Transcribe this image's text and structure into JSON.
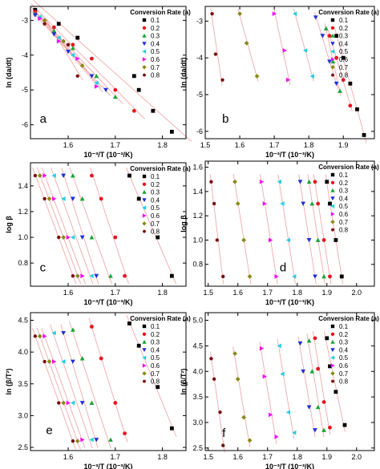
{
  "figure": {
    "legend_title": "Conversion Rate (a)",
    "legend_labels": [
      "0.1",
      "0.2",
      "0.3",
      "0.4",
      "0.5",
      "0.6",
      "0.7",
      "0.8"
    ],
    "series_colors": [
      "#000000",
      "#e8141e",
      "#17a536",
      "#1f2fd8",
      "#22cfe0",
      "#f012f0",
      "#8a8a18",
      "#7a1010"
    ],
    "series_markers": [
      "square",
      "circle",
      "triangle-up",
      "triangle-down",
      "triangle-left",
      "triangle-right",
      "diamond",
      "hexagon"
    ],
    "fit_line_color": "#f0a0a0"
  },
  "chart_data": [
    {
      "panel": "a",
      "type": "scatter",
      "xlabel": "10⁻³/T (10⁻³/K)",
      "ylabel": "ln (da/dt)",
      "xlim": [
        1.52,
        1.85
      ],
      "ylim": [
        -6.4,
        -2.6
      ],
      "xticks": [
        1.6,
        1.7,
        1.8
      ],
      "yticks": [
        -3,
        -4,
        -5,
        -6
      ],
      "series": [
        {
          "name": "0.1",
          "x": [
            1.53,
            1.58,
            1.62,
            1.74,
            1.75,
            1.78,
            1.82
          ],
          "y": [
            -2.7,
            -3.1,
            -3.5,
            -4.6,
            -5.0,
            -5.6,
            -6.2
          ]
        },
        {
          "name": "0.2",
          "x": [
            1.53,
            1.57,
            1.61,
            1.65,
            1.7,
            1.74
          ],
          "y": [
            -2.75,
            -3.2,
            -3.7,
            -4.1,
            -5.0,
            -5.6
          ]
        },
        {
          "name": "0.3",
          "x": [
            1.53,
            1.57,
            1.61,
            1.66,
            1.7
          ],
          "y": [
            -2.8,
            -3.3,
            -3.8,
            -4.6,
            -5.2
          ]
        },
        {
          "name": "0.4",
          "x": [
            1.53,
            1.57,
            1.6,
            1.65,
            1.68
          ],
          "y": [
            -2.85,
            -3.4,
            -3.9,
            -4.6,
            -5.0
          ]
        },
        {
          "name": "0.5",
          "x": [
            1.54,
            1.58,
            1.61,
            1.66
          ],
          "y": [
            -2.9,
            -3.5,
            -4.0,
            -4.8
          ]
        },
        {
          "name": "0.6",
          "x": [
            1.54,
            1.58,
            1.62,
            1.66
          ],
          "y": [
            -2.95,
            -3.6,
            -4.1,
            -4.9
          ]
        },
        {
          "name": "0.7",
          "x": [
            1.55,
            1.59,
            1.63
          ],
          "y": [
            -3.0,
            -3.6,
            -4.3
          ]
        },
        {
          "name": "0.8",
          "x": [
            1.55,
            1.6,
            1.62
          ],
          "y": [
            -3.1,
            -3.7,
            -4.6
          ]
        }
      ],
      "panel_label": "a"
    },
    {
      "panel": "b",
      "type": "scatter",
      "xlabel": "10⁻³/T (10⁻³/K)",
      "ylabel": "ln (da/dt)",
      "xlim": [
        1.5,
        1.99
      ],
      "ylim": [
        -6.2,
        -2.6
      ],
      "xticks": [
        1.5,
        1.6,
        1.7,
        1.8,
        1.9
      ],
      "yticks": [
        -3,
        -4,
        -5,
        -6
      ],
      "series": [
        {
          "name": "0.1",
          "x": [
            1.88,
            1.9,
            1.92,
            1.94,
            1.96
          ],
          "y": [
            -3.4,
            -4.0,
            -4.7,
            -5.4,
            -6.1
          ]
        },
        {
          "name": "0.2",
          "x": [
            1.86,
            1.88,
            1.9,
            1.92
          ],
          "y": [
            -3.4,
            -4.0,
            -4.6,
            -5.3
          ]
        },
        {
          "name": "0.3",
          "x": [
            1.85,
            1.87,
            1.89
          ],
          "y": [
            -3.2,
            -4.1,
            -4.9
          ]
        },
        {
          "name": "0.4",
          "x": [
            1.82,
            1.84,
            1.86,
            1.88
          ],
          "y": [
            -2.9,
            -3.4,
            -4.1,
            -4.7
          ]
        },
        {
          "name": "0.5",
          "x": [
            1.76,
            1.79,
            1.81
          ],
          "y": [
            -2.8,
            -3.8,
            -4.5
          ]
        },
        {
          "name": "0.6",
          "x": [
            1.7,
            1.73,
            1.74
          ],
          "y": [
            -2.8,
            -3.8,
            -4.6
          ]
        },
        {
          "name": "0.7",
          "x": [
            1.6,
            1.62,
            1.65
          ],
          "y": [
            -2.8,
            -3.6,
            -4.5
          ]
        },
        {
          "name": "0.8",
          "x": [
            1.52,
            1.53,
            1.55
          ],
          "y": [
            -2.8,
            -3.9,
            -4.6
          ]
        }
      ],
      "panel_label": "b"
    },
    {
      "panel": "c",
      "type": "scatter",
      "xlabel": "10⁻³/T (10⁻³/K)",
      "ylabel": "log β",
      "xlim": [
        1.52,
        1.85
      ],
      "ylim": [
        0.62,
        1.58
      ],
      "xticks": [
        1.6,
        1.7,
        1.8
      ],
      "yticks": [
        0.8,
        1.0,
        1.2,
        1.4
      ],
      "series": [
        {
          "name": "0.1",
          "x": [
            1.73,
            1.75,
            1.79,
            1.82
          ],
          "y": [
            1.48,
            1.3,
            1.0,
            0.7
          ]
        },
        {
          "name": "0.2",
          "x": [
            1.65,
            1.67,
            1.7,
            1.72
          ],
          "y": [
            1.48,
            1.3,
            1.0,
            0.7
          ]
        },
        {
          "name": "0.3",
          "x": [
            1.61,
            1.63,
            1.65,
            1.69
          ],
          "y": [
            1.48,
            1.3,
            1.0,
            0.7
          ]
        },
        {
          "name": "0.4",
          "x": [
            1.59,
            1.61,
            1.63,
            1.66
          ],
          "y": [
            1.48,
            1.3,
            1.0,
            0.7
          ]
        },
        {
          "name": "0.5",
          "x": [
            1.57,
            1.59,
            1.61,
            1.65
          ],
          "y": [
            1.48,
            1.3,
            1.0,
            0.7
          ]
        },
        {
          "name": "0.6",
          "x": [
            1.55,
            1.57,
            1.6,
            1.63
          ],
          "y": [
            1.48,
            1.3,
            1.0,
            0.7
          ]
        },
        {
          "name": "0.7",
          "x": [
            1.54,
            1.56,
            1.59,
            1.62
          ],
          "y": [
            1.48,
            1.3,
            1.0,
            0.7
          ]
        },
        {
          "name": "0.8",
          "x": [
            1.53,
            1.55,
            1.58,
            1.61
          ],
          "y": [
            1.48,
            1.3,
            1.0,
            0.7
          ]
        }
      ],
      "panel_label": "c"
    },
    {
      "panel": "d",
      "type": "scatter",
      "xlabel": "10⁻³/T (10⁻³/K)",
      "ylabel": "log β",
      "xlim": [
        1.49,
        2.06
      ],
      "ylim": [
        0.62,
        1.65
      ],
      "xticks": [
        1.5,
        1.6,
        1.7,
        1.8,
        1.9,
        2.0
      ],
      "yticks": [
        0.8,
        1.0,
        1.2,
        1.4,
        1.6
      ],
      "series": [
        {
          "name": "0.1",
          "x": [
            1.9,
            1.91,
            1.93,
            1.95
          ],
          "y": [
            1.48,
            1.3,
            1.0,
            0.7
          ]
        },
        {
          "name": "0.2",
          "x": [
            1.86,
            1.87,
            1.89,
            1.91
          ],
          "y": [
            1.48,
            1.3,
            1.0,
            0.7
          ]
        },
        {
          "name": "0.3",
          "x": [
            1.84,
            1.85,
            1.87,
            1.89
          ],
          "y": [
            1.48,
            1.3,
            1.0,
            0.7
          ]
        },
        {
          "name": "0.4",
          "x": [
            1.81,
            1.82,
            1.84,
            1.86
          ],
          "y": [
            1.48,
            1.3,
            1.0,
            0.7
          ]
        },
        {
          "name": "0.5",
          "x": [
            1.74,
            1.75,
            1.77,
            1.79
          ],
          "y": [
            1.48,
            1.3,
            1.0,
            0.7
          ]
        },
        {
          "name": "0.6",
          "x": [
            1.68,
            1.69,
            1.71,
            1.73
          ],
          "y": [
            1.48,
            1.3,
            1.0,
            0.7
          ]
        },
        {
          "name": "0.7",
          "x": [
            1.59,
            1.6,
            1.62,
            1.64
          ],
          "y": [
            1.48,
            1.3,
            1.0,
            0.7
          ]
        },
        {
          "name": "0.8",
          "x": [
            1.51,
            1.52,
            1.53,
            1.55
          ],
          "y": [
            1.48,
            1.3,
            1.0,
            0.7
          ]
        }
      ],
      "panel_label": "d"
    },
    {
      "panel": "e",
      "type": "scatter",
      "xlabel": "10⁻³/T (10⁻³/K)",
      "ylabel": "ln (β/T²)",
      "xlim": [
        1.52,
        1.85
      ],
      "ylim": [
        2.45,
        4.62
      ],
      "xticks": [
        1.6,
        1.7,
        1.8
      ],
      "yticks": [
        2.5,
        3.0,
        3.5,
        4.0,
        4.5
      ],
      "series": [
        {
          "name": "0.1",
          "x": [
            1.73,
            1.75,
            1.79,
            1.82
          ],
          "y": [
            4.45,
            4.1,
            3.45,
            2.8
          ]
        },
        {
          "name": "0.2",
          "x": [
            1.65,
            1.67,
            1.7,
            1.72
          ],
          "y": [
            4.4,
            3.9,
            3.2,
            2.72
          ]
        },
        {
          "name": "0.3",
          "x": [
            1.61,
            1.63,
            1.65,
            1.69
          ],
          "y": [
            4.35,
            3.9,
            3.2,
            2.62
          ]
        },
        {
          "name": "0.4",
          "x": [
            1.59,
            1.61,
            1.63,
            1.66
          ],
          "y": [
            4.3,
            3.85,
            3.2,
            2.62
          ]
        },
        {
          "name": "0.5",
          "x": [
            1.57,
            1.59,
            1.61,
            1.65
          ],
          "y": [
            4.3,
            3.85,
            3.2,
            2.62
          ]
        },
        {
          "name": "0.6",
          "x": [
            1.55,
            1.57,
            1.6,
            1.63
          ],
          "y": [
            4.25,
            3.85,
            3.2,
            2.62
          ]
        },
        {
          "name": "0.7",
          "x": [
            1.54,
            1.56,
            1.59,
            1.62
          ],
          "y": [
            4.25,
            3.85,
            3.2,
            2.6
          ]
        },
        {
          "name": "0.8",
          "x": [
            1.53,
            1.55,
            1.58,
            1.61
          ],
          "y": [
            4.25,
            3.85,
            3.2,
            2.6
          ]
        }
      ],
      "panel_label": "e"
    },
    {
      "panel": "f",
      "type": "scatter",
      "xlabel": "10⁻³/T (10⁻³/K)",
      "ylabel": "ln (β/T²)",
      "xlim": [
        1.49,
        2.06
      ],
      "ylim": [
        2.45,
        5.15
      ],
      "xticks": [
        1.5,
        1.6,
        1.7,
        1.8,
        1.9,
        2.0
      ],
      "yticks": [
        2.5,
        3.0,
        3.5,
        4.0,
        4.5,
        5.0
      ],
      "series": [
        {
          "name": "0.1",
          "x": [
            1.9,
            1.91,
            1.93,
            1.96
          ],
          "y": [
            4.65,
            4.1,
            3.6,
            2.95
          ]
        },
        {
          "name": "0.2",
          "x": [
            1.86,
            1.87,
            1.89,
            1.91
          ],
          "y": [
            4.65,
            4.05,
            3.4,
            2.9
          ]
        },
        {
          "name": "0.3",
          "x": [
            1.84,
            1.85,
            1.87,
            1.89
          ],
          "y": [
            4.6,
            4.0,
            3.3,
            2.85
          ]
        },
        {
          "name": "0.4",
          "x": [
            1.81,
            1.82,
            1.84,
            1.86
          ],
          "y": [
            4.55,
            4.0,
            3.3,
            2.85
          ]
        },
        {
          "name": "0.5",
          "x": [
            1.74,
            1.75,
            1.77,
            1.79
          ],
          "y": [
            4.5,
            3.95,
            3.2,
            2.8
          ]
        },
        {
          "name": "0.6",
          "x": [
            1.68,
            1.69,
            1.71,
            1.73
          ],
          "y": [
            4.45,
            3.9,
            3.15,
            2.72
          ]
        },
        {
          "name": "0.7",
          "x": [
            1.59,
            1.6,
            1.62,
            1.64
          ],
          "y": [
            4.35,
            3.85,
            3.1,
            2.65
          ]
        },
        {
          "name": "0.8",
          "x": [
            1.51,
            1.52,
            1.54,
            1.55
          ],
          "y": [
            4.25,
            3.85,
            3.2,
            2.55
          ]
        }
      ],
      "panel_label": "f"
    }
  ]
}
